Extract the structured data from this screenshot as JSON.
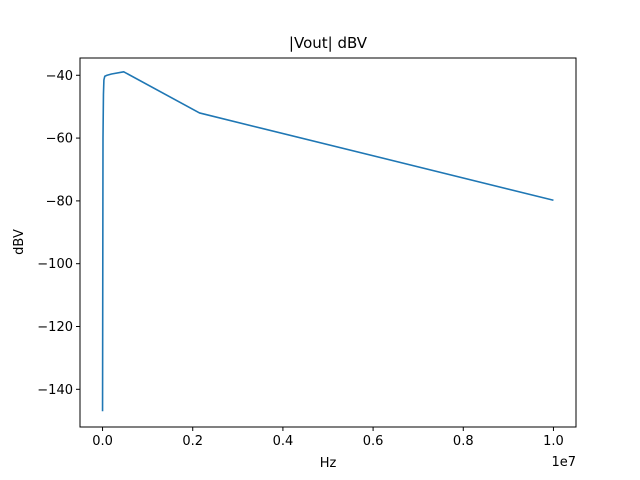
{
  "chart_data": {
    "type": "line",
    "title": "|Vout| dBV",
    "xlabel": "Hz",
    "ylabel": "dBV",
    "x_offset_text": "1e7",
    "xlim": [
      -500000,
      10500000
    ],
    "ylim": [
      -152,
      -34.5
    ],
    "x_ticks": [
      0,
      2000000,
      4000000,
      6000000,
      8000000,
      10000000
    ],
    "x_tick_labels": [
      "0.0",
      "0.2",
      "0.4",
      "0.6",
      "0.8",
      "1.0"
    ],
    "y_ticks": [
      -140,
      -120,
      -100,
      -80,
      -60,
      -40
    ],
    "y_tick_labels": [
      "−140",
      "−120",
      "−100",
      "−80",
      "−60",
      "−40"
    ],
    "grid": false,
    "series": [
      {
        "color": "#1f77b4",
        "x": [
          0,
          10000,
          20000,
          30000,
          50000,
          100000,
          200000,
          470000,
          2150000,
          10000000
        ],
        "y": [
          -147,
          -60,
          -46,
          -41.5,
          -40.3,
          -40,
          -39.6,
          -38.9,
          -52,
          -79.8
        ]
      }
    ]
  }
}
